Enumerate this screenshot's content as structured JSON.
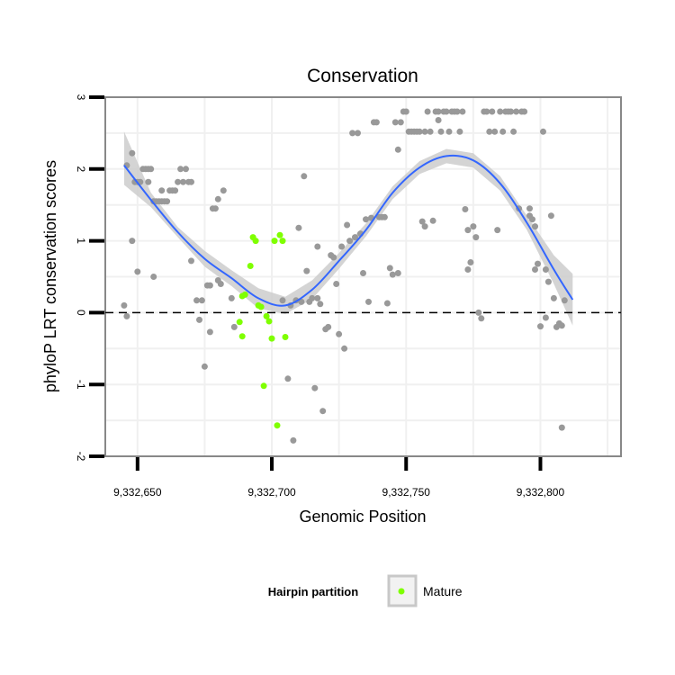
{
  "chart_data": {
    "type": "scatter",
    "title": "Conservation",
    "xlabel": "Genomic Position",
    "ylabel": "phyloP LRT conservation scores",
    "xlim": [
      9332638,
      9332830
    ],
    "ylim": [
      -2,
      3
    ],
    "x_ticks": [
      9332650,
      9332700,
      9332750,
      9332800
    ],
    "x_tick_labels": [
      "9,332,650",
      "9,332,700",
      "9,332,750",
      "9,332,800"
    ],
    "y_ticks": [
      -2,
      -1,
      0,
      1,
      2,
      3
    ],
    "y_tick_labels": [
      "-2",
      "-1",
      "0",
      "1",
      "2",
      "3"
    ],
    "reference_line": {
      "y": 0,
      "style": "dashed"
    },
    "legend": {
      "title": "Hairpin partition",
      "entries": [
        {
          "label": "Mature",
          "color": "#7fff00"
        }
      ]
    },
    "colors": {
      "other": "#999999",
      "mature": "#7fff00",
      "smooth": "#3366ff",
      "band": "#cccccc"
    },
    "series": [
      {
        "name": "Other",
        "points": [
          [
            9332645,
            0.1
          ],
          [
            9332646,
            -0.05
          ],
          [
            9332646,
            2.05
          ],
          [
            9332648,
            1.0
          ],
          [
            9332648,
            2.22
          ],
          [
            9332649,
            1.82
          ],
          [
            9332650,
            0.57
          ],
          [
            9332650,
            1.82
          ],
          [
            9332651,
            1.82
          ],
          [
            9332652,
            2.0
          ],
          [
            9332653,
            2.0
          ],
          [
            9332654,
            1.82
          ],
          [
            9332654,
            2.0
          ],
          [
            9332655,
            2.0
          ],
          [
            9332656,
            0.5
          ],
          [
            9332656,
            1.55
          ],
          [
            9332657,
            1.55
          ],
          [
            9332658,
            1.55
          ],
          [
            9332659,
            1.7
          ],
          [
            9332659,
            1.55
          ],
          [
            9332660,
            1.55
          ],
          [
            9332661,
            1.55
          ],
          [
            9332662,
            1.7
          ],
          [
            9332663,
            1.7
          ],
          [
            9332664,
            1.7
          ],
          [
            9332665,
            1.82
          ],
          [
            9332666,
            2.0
          ],
          [
            9332667,
            1.82
          ],
          [
            9332668,
            2.0
          ],
          [
            9332669,
            1.82
          ],
          [
            9332670,
            0.72
          ],
          [
            9332670,
            1.82
          ],
          [
            9332672,
            0.17
          ],
          [
            9332673,
            -0.1
          ],
          [
            9332674,
            0.17
          ],
          [
            9332675,
            -0.75
          ],
          [
            9332676,
            0.38
          ],
          [
            9332677,
            0.38
          ],
          [
            9332677,
            -0.27
          ],
          [
            9332678,
            1.45
          ],
          [
            9332679,
            1.45
          ],
          [
            9332680,
            0.45
          ],
          [
            9332680,
            1.58
          ],
          [
            9332681,
            0.4
          ],
          [
            9332682,
            1.7
          ],
          [
            9332685,
            0.2
          ],
          [
            9332686,
            -0.2
          ],
          [
            9332704,
            0.17
          ],
          [
            9332706,
            -0.92
          ],
          [
            9332707,
            0.1
          ],
          [
            9332708,
            -1.78
          ],
          [
            9332709,
            0.17
          ],
          [
            9332710,
            1.18
          ],
          [
            9332711,
            0.15
          ],
          [
            9332712,
            1.9
          ],
          [
            9332713,
            0.58
          ],
          [
            9332714,
            0.15
          ],
          [
            9332715,
            0.2
          ],
          [
            9332716,
            -1.05
          ],
          [
            9332717,
            0.92
          ],
          [
            9332717,
            0.2
          ],
          [
            9332718,
            0.12
          ],
          [
            9332719,
            -1.37
          ],
          [
            9332720,
            -0.23
          ],
          [
            9332721,
            -0.2
          ],
          [
            9332722,
            0.8
          ],
          [
            9332723,
            0.77
          ],
          [
            9332724,
            0.4
          ],
          [
            9332725,
            -0.3
          ],
          [
            9332726,
            0.92
          ],
          [
            9332727,
            -0.5
          ],
          [
            9332728,
            1.22
          ],
          [
            9332729,
            1.0
          ],
          [
            9332730,
            2.5
          ],
          [
            9332731,
            1.05
          ],
          [
            9332732,
            2.5
          ],
          [
            9332733,
            1.1
          ],
          [
            9332734,
            0.55
          ],
          [
            9332735,
            1.3
          ],
          [
            9332736,
            0.15
          ],
          [
            9332737,
            1.32
          ],
          [
            9332738,
            2.65
          ],
          [
            9332739,
            2.65
          ],
          [
            9332740,
            1.33
          ],
          [
            9332741,
            1.33
          ],
          [
            9332742,
            1.33
          ],
          [
            9332743,
            0.13
          ],
          [
            9332744,
            0.62
          ],
          [
            9332745,
            0.53
          ],
          [
            9332746,
            2.65
          ],
          [
            9332747,
            0.55
          ],
          [
            9332747,
            2.27
          ],
          [
            9332748,
            2.65
          ],
          [
            9332749,
            2.8
          ],
          [
            9332750,
            2.8
          ],
          [
            9332751,
            2.52
          ],
          [
            9332752,
            2.52
          ],
          [
            9332753,
            2.52
          ],
          [
            9332754,
            2.52
          ],
          [
            9332755,
            2.52
          ],
          [
            9332756,
            1.27
          ],
          [
            9332757,
            1.2
          ],
          [
            9332757,
            2.52
          ],
          [
            9332758,
            2.8
          ],
          [
            9332759,
            2.52
          ],
          [
            9332760,
            1.28
          ],
          [
            9332761,
            2.8
          ],
          [
            9332762,
            2.68
          ],
          [
            9332762,
            2.8
          ],
          [
            9332763,
            2.52
          ],
          [
            9332764,
            2.8
          ],
          [
            9332765,
            2.8
          ],
          [
            9332766,
            2.52
          ],
          [
            9332767,
            2.8
          ],
          [
            9332768,
            2.8
          ],
          [
            9332769,
            2.8
          ],
          [
            9332770,
            2.52
          ],
          [
            9332771,
            2.8
          ],
          [
            9332772,
            1.44
          ],
          [
            9332773,
            0.6
          ],
          [
            9332773,
            1.15
          ],
          [
            9332774,
            0.7
          ],
          [
            9332775,
            1.2
          ],
          [
            9332776,
            1.05
          ],
          [
            9332777,
            0.0
          ],
          [
            9332778,
            -0.08
          ],
          [
            9332779,
            2.8
          ],
          [
            9332780,
            2.8
          ],
          [
            9332781,
            2.52
          ],
          [
            9332782,
            2.8
          ],
          [
            9332783,
            2.52
          ],
          [
            9332784,
            1.15
          ],
          [
            9332785,
            2.8
          ],
          [
            9332786,
            2.52
          ],
          [
            9332787,
            2.8
          ],
          [
            9332788,
            2.8
          ],
          [
            9332789,
            2.8
          ],
          [
            9332790,
            2.52
          ],
          [
            9332791,
            2.8
          ],
          [
            9332792,
            1.45
          ],
          [
            9332793,
            2.8
          ],
          [
            9332794,
            2.8
          ],
          [
            9332796,
            1.45
          ],
          [
            9332796,
            1.35
          ],
          [
            9332797,
            1.3
          ],
          [
            9332798,
            0.6
          ],
          [
            9332798,
            1.2
          ],
          [
            9332799,
            0.68
          ],
          [
            9332800,
            -0.19
          ],
          [
            9332801,
            2.52
          ],
          [
            9332802,
            -0.07
          ],
          [
            9332802,
            0.6
          ],
          [
            9332803,
            0.43
          ],
          [
            9332804,
            1.35
          ],
          [
            9332805,
            0.2
          ],
          [
            9332806,
            -0.2
          ],
          [
            9332807,
            -0.15
          ],
          [
            9332808,
            -0.18
          ],
          [
            9332808,
            -1.6
          ],
          [
            9332809,
            0.17
          ]
        ]
      },
      {
        "name": "Mature",
        "points": [
          [
            9332688,
            -0.13
          ],
          [
            9332689,
            -0.33
          ],
          [
            9332689,
            0.23
          ],
          [
            9332690,
            0.25
          ],
          [
            9332692,
            0.65
          ],
          [
            9332693,
            1.05
          ],
          [
            9332694,
            1.0
          ],
          [
            9332695,
            0.1
          ],
          [
            9332696,
            0.08
          ],
          [
            9332697,
            -1.02
          ],
          [
            9332698,
            -0.05
          ],
          [
            9332699,
            -0.12
          ],
          [
            9332700,
            -0.36
          ],
          [
            9332701,
            1.0
          ],
          [
            9332702,
            -1.57
          ],
          [
            9332703,
            1.08
          ],
          [
            9332704,
            1.0
          ],
          [
            9332705,
            -0.34
          ]
        ]
      }
    ],
    "smooth": {
      "x": [
        9332645,
        9332655,
        9332665,
        9332675,
        9332685,
        9332695,
        9332705,
        9332715,
        9332725,
        9332735,
        9332745,
        9332755,
        9332765,
        9332775,
        9332785,
        9332795,
        9332805,
        9332812
      ],
      "y": [
        2.05,
        1.57,
        1.12,
        0.75,
        0.48,
        0.2,
        0.1,
        0.32,
        0.72,
        1.15,
        1.67,
        2.02,
        2.18,
        2.12,
        1.8,
        1.25,
        0.6,
        0.18
      ],
      "lower": [
        1.78,
        1.47,
        1.05,
        0.64,
        0.37,
        0.06,
        -0.02,
        0.19,
        0.61,
        1.06,
        1.58,
        1.93,
        2.08,
        2.02,
        1.7,
        1.15,
        0.4,
        -0.18
      ],
      "upper": [
        2.52,
        1.67,
        1.19,
        0.86,
        0.59,
        0.34,
        0.22,
        0.45,
        0.83,
        1.24,
        1.76,
        2.11,
        2.28,
        2.22,
        1.9,
        1.35,
        0.8,
        0.54
      ]
    }
  }
}
